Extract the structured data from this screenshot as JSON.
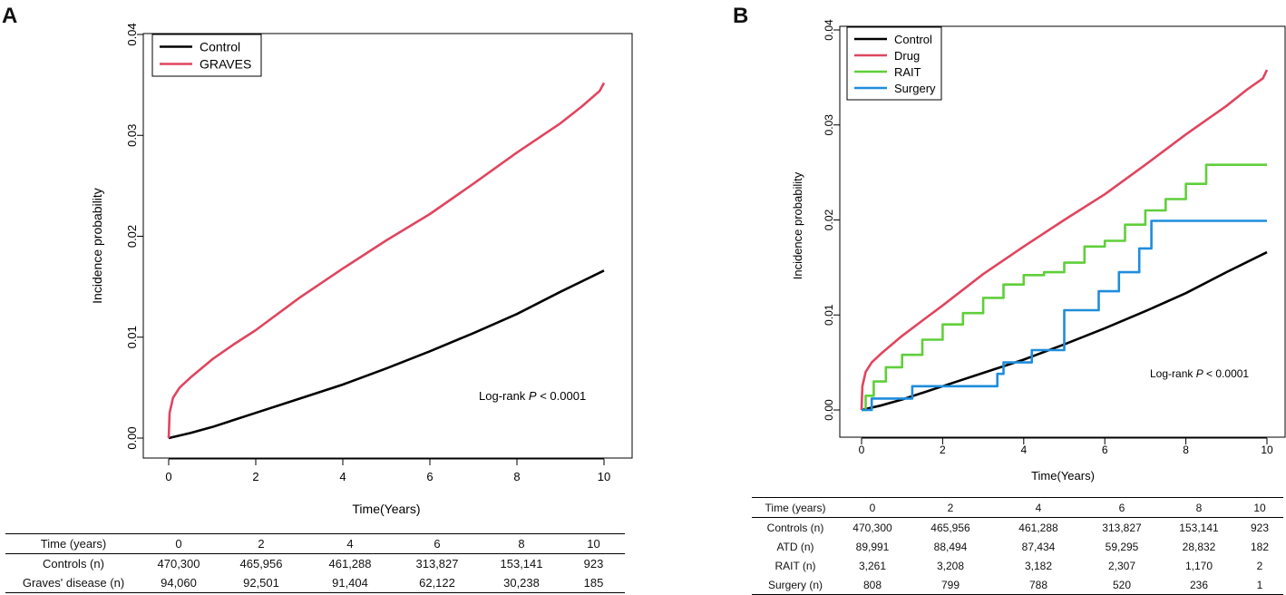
{
  "panels": {
    "a": {
      "letter": "A"
    },
    "b": {
      "letter": "B"
    }
  },
  "chart_data": [
    {
      "type": "line",
      "panel": "A",
      "title": "",
      "xlabel": "Time(Years)",
      "ylabel": "Incidence probability",
      "xlim": [
        0,
        10
      ],
      "ylim": [
        0,
        0.04
      ],
      "xticks": [
        0,
        2,
        4,
        6,
        8,
        10
      ],
      "yticks": [
        "0.00",
        "0.01",
        "0.02",
        "0.03",
        "0.04"
      ],
      "legend": [
        "Control",
        "GRAVES"
      ],
      "legend_position": "top-left",
      "annotation": {
        "prefix": "Log-rank ",
        "italic": "P",
        "suffix": " < 0.0001"
      },
      "series": [
        {
          "name": "Control",
          "color": "#000000",
          "x": [
            0,
            0.5,
            1,
            2,
            3,
            4,
            5,
            6,
            7,
            8,
            9,
            10
          ],
          "y": [
            0,
            0.0005,
            0.0011,
            0.0025,
            0.0039,
            0.0053,
            0.0069,
            0.0086,
            0.0104,
            0.0123,
            0.0145,
            0.0166
          ]
        },
        {
          "name": "GRAVES",
          "color": "#e0455f",
          "x": [
            0,
            0.02,
            0.1,
            0.25,
            0.5,
            1,
            1.5,
            2,
            3,
            4,
            5,
            6,
            7,
            8,
            9,
            9.5,
            9.9,
            10
          ],
          "y": [
            0,
            0.0025,
            0.004,
            0.005,
            0.006,
            0.0078,
            0.0093,
            0.0107,
            0.0139,
            0.0168,
            0.0196,
            0.0222,
            0.0252,
            0.0283,
            0.0312,
            0.0329,
            0.0344,
            0.0352
          ]
        }
      ]
    },
    {
      "type": "line",
      "panel": "B",
      "title": "",
      "xlabel": "Time(Years)",
      "ylabel": "Incidence probability",
      "xlim": [
        0,
        10
      ],
      "ylim": [
        0,
        0.04
      ],
      "xticks": [
        0,
        2,
        4,
        6,
        8,
        10
      ],
      "yticks": [
        "0.00",
        "0.01",
        "0.02",
        "0.03",
        "0.04"
      ],
      "legend": [
        "Control",
        "Drug",
        "RAIT",
        "Surgery"
      ],
      "legend_position": "top-left",
      "annotation": {
        "prefix": "Log-rank ",
        "italic": "P",
        "suffix": " < 0.0001"
      },
      "series": [
        {
          "name": "Control",
          "color": "#000000",
          "step": false,
          "x": [
            0,
            0.5,
            1,
            2,
            3,
            4,
            5,
            6,
            7,
            8,
            9,
            10
          ],
          "y": [
            0,
            0.0005,
            0.0011,
            0.0025,
            0.0039,
            0.0053,
            0.0069,
            0.0086,
            0.0104,
            0.0123,
            0.0145,
            0.0166
          ]
        },
        {
          "name": "Drug",
          "color": "#e0455f",
          "step": false,
          "x": [
            0,
            0.02,
            0.1,
            0.25,
            0.5,
            1,
            1.5,
            2,
            3,
            4,
            5,
            6,
            7,
            8,
            9,
            9.5,
            9.9,
            10
          ],
          "y": [
            0,
            0.0025,
            0.004,
            0.005,
            0.006,
            0.0078,
            0.0094,
            0.011,
            0.0143,
            0.0172,
            0.02,
            0.0227,
            0.0258,
            0.029,
            0.032,
            0.0337,
            0.0349,
            0.0358
          ]
        },
        {
          "name": "RAIT",
          "color": "#5fcf3a",
          "step": true,
          "x": [
            0,
            0.1,
            0.3,
            0.6,
            1,
            1.5,
            2,
            2.5,
            3,
            3.5,
            4,
            4.5,
            5,
            5.5,
            6,
            6.5,
            7,
            7.5,
            8,
            8.5,
            9,
            10
          ],
          "y": [
            0,
            0.0015,
            0.003,
            0.0045,
            0.0058,
            0.0074,
            0.009,
            0.0102,
            0.0118,
            0.0132,
            0.0142,
            0.0145,
            0.0155,
            0.0172,
            0.0178,
            0.0195,
            0.021,
            0.0222,
            0.0238,
            0.0258,
            0.0258,
            0.0258
          ]
        },
        {
          "name": "Surgery",
          "color": "#1f8ddc",
          "step": true,
          "x": [
            0,
            0.25,
            1.25,
            3.35,
            3.5,
            4.2,
            5.0,
            5.85,
            6.35,
            6.85,
            7.15,
            10
          ],
          "y": [
            0,
            0.0012,
            0.0025,
            0.0038,
            0.005,
            0.0063,
            0.0105,
            0.0125,
            0.0145,
            0.017,
            0.0199,
            0.0199
          ]
        }
      ]
    }
  ],
  "tables": {
    "a": {
      "header": [
        "Time (years)",
        "0",
        "2",
        "4",
        "6",
        "8",
        "10"
      ],
      "rows": [
        [
          "Controls (n)",
          "470,300",
          "465,956",
          "461,288",
          "313,827",
          "153,141",
          "923"
        ],
        [
          "Graves' disease (n)",
          "94,060",
          "92,501",
          "91,404",
          "62,122",
          "30,238",
          "185"
        ]
      ]
    },
    "b": {
      "header": [
        "Time (years)",
        "0",
        "2",
        "4",
        "6",
        "8",
        "10"
      ],
      "rows": [
        [
          "Controls (n)",
          "470,300",
          "465,956",
          "461,288",
          "313,827",
          "153,141",
          "923"
        ],
        [
          "ATD (n)",
          "89,991",
          "88,494",
          "87,434",
          "59,295",
          "28,832",
          "182"
        ],
        [
          "RAIT (n)",
          "3,261",
          "3,208",
          "3,182",
          "2,307",
          "1,170",
          "2"
        ],
        [
          "Surgery (n)",
          "808",
          "799",
          "788",
          "520",
          "236",
          "1"
        ]
      ]
    }
  }
}
